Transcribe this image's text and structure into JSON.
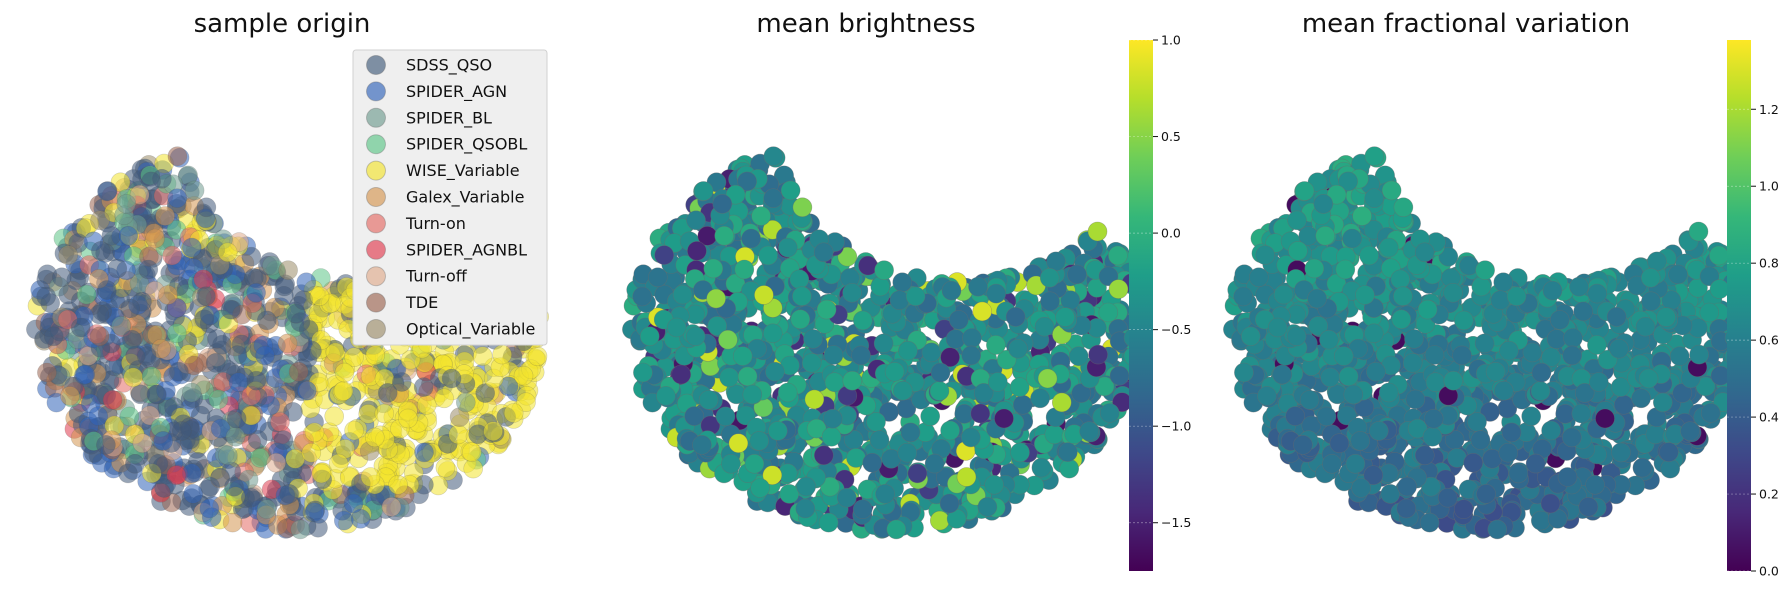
{
  "colors": {
    "SDSS_QSO": "#415a7a",
    "SPIDER_AGN": "#2f62b8",
    "SPIDER_BL": "#6f9b8f",
    "SPIDER_QSOBL": "#5cc487",
    "WISE_Variable": "#f2e42e",
    "Galex_Variable": "#d49550",
    "Turn-on": "#e36a64",
    "SPIDER_AGNBL": "#e03a4f",
    "Turn-off": "#dfab8c",
    "TDE": "#9b6450",
    "Optical_Variable": "#9b8c68",
    "viridis": [
      "#440154",
      "#482878",
      "#3e4989",
      "#31688e",
      "#26828e",
      "#1f9e89",
      "#35b779",
      "#6ece58",
      "#b5de2b",
      "#fde725"
    ]
  },
  "chart_data": [
    {
      "type": "scatter",
      "title": "sample origin",
      "legend_position": "top-right",
      "grid": false,
      "legend": [
        "SDSS_QSO",
        "SPIDER_AGN",
        "SPIDER_BL",
        "SPIDER_QSOBL",
        "WISE_Variable",
        "Galex_Variable",
        "Turn-on",
        "SPIDER_AGNBL",
        "Turn-off",
        "TDE",
        "Optical_Variable"
      ]
    },
    {
      "type": "scatter",
      "title": "mean brightness",
      "grid": false,
      "colorbar": {
        "colormap": "viridis",
        "range": [
          -1.75,
          1.0
        ],
        "ticks": [
          "1.0",
          "0.5",
          "0.0",
          "−0.5",
          "−1.0",
          "−1.5"
        ],
        "tick_values": [
          1.0,
          0.5,
          0.0,
          -0.5,
          -1.0,
          -1.5
        ]
      }
    },
    {
      "type": "scatter",
      "title": "mean fractional variation",
      "grid": false,
      "colorbar": {
        "colormap": "viridis",
        "range": [
          0.0,
          1.38
        ],
        "ticks": [
          "1.2",
          "1.0",
          "0.8",
          "0.6",
          "0.4",
          "0.2",
          "0.0"
        ],
        "tick_values": [
          1.2,
          1.0,
          0.8,
          0.6,
          0.4,
          0.2,
          0.0
        ]
      }
    }
  ]
}
